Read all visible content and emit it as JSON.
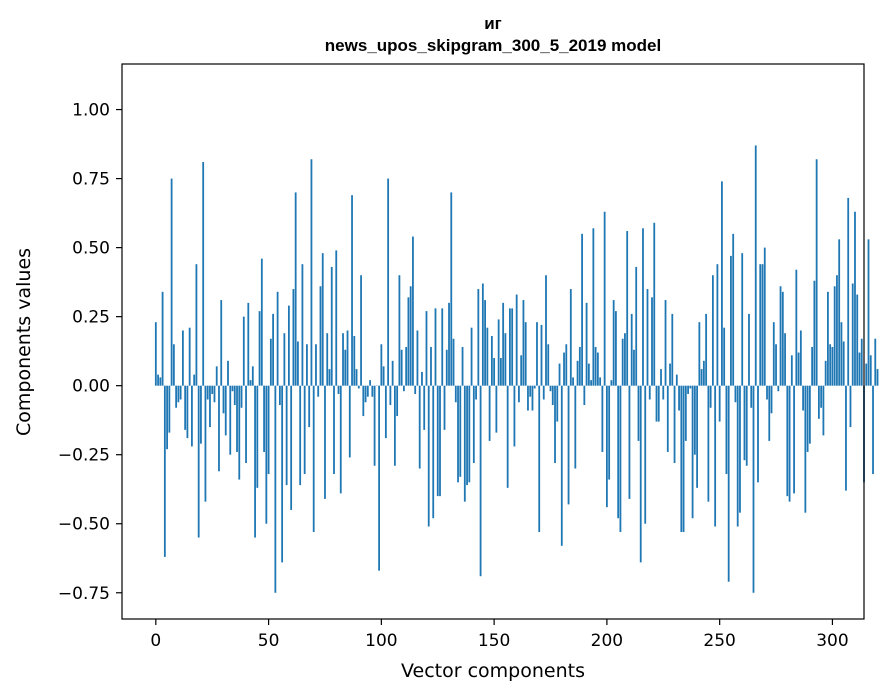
{
  "chart_data": {
    "type": "bar",
    "title_line1": "иг",
    "title_line2": "news_upos_skipgram_300_5_2019 model",
    "xlabel": "Vector components",
    "ylabel": "Components values",
    "xlim": [
      -15,
      314
    ],
    "ylim": [
      -0.845,
      1.165
    ],
    "xticks": [
      0,
      50,
      100,
      150,
      200,
      250,
      300
    ],
    "xtick_labels": [
      "0",
      "50",
      "100",
      "150",
      "200",
      "250",
      "300"
    ],
    "yticks": [
      -0.75,
      -0.5,
      -0.25,
      0.0,
      0.25,
      0.5,
      0.75,
      1.0
    ],
    "ytick_labels": [
      "−0.75",
      "−0.50",
      "−0.25",
      "0.00",
      "0.25",
      "0.50",
      "0.75",
      "1.00"
    ],
    "bar_color": "#1f77b4",
    "grid": false,
    "values": [
      0.23,
      0.04,
      0.03,
      0.34,
      -0.62,
      -0.23,
      -0.17,
      0.75,
      0.15,
      -0.08,
      -0.06,
      -0.05,
      0.2,
      -0.16,
      -0.19,
      0.21,
      -0.22,
      0.04,
      0.44,
      -0.55,
      -0.21,
      0.81,
      -0.42,
      -0.05,
      -0.15,
      -0.03,
      -0.06,
      0.07,
      -0.31,
      0.31,
      -0.1,
      -0.18,
      0.09,
      -0.25,
      -0.02,
      -0.07,
      -0.24,
      -0.34,
      -0.08,
      0.25,
      -0.28,
      0.3,
      0.02,
      0.07,
      -0.55,
      -0.37,
      0.27,
      0.46,
      -0.24,
      -0.5,
      -0.32,
      0.17,
      0.26,
      -0.75,
      0.34,
      -0.07,
      -0.64,
      0.19,
      -0.36,
      0.29,
      -0.45,
      0.35,
      0.7,
      0.16,
      -0.36,
      0.44,
      -0.32,
      0.15,
      -0.15,
      0.82,
      -0.53,
      0.15,
      -0.04,
      0.36,
      0.48,
      -0.41,
      0.19,
      0.06,
      0.43,
      -0.32,
      0.49,
      -0.03,
      -0.39,
      0.19,
      0.13,
      0.2,
      -0.26,
      0.69,
      0.18,
      0.06,
      -0.01,
      0.4,
      -0.11,
      -0.06,
      -0.04,
      0.02,
      -0.04,
      -0.29,
      0.0,
      -0.67,
      0.15,
      0.07,
      -0.19,
      0.75,
      -0.07,
      0.09,
      -0.29,
      -0.11,
      0.4,
      0.13,
      -0.02,
      0.14,
      0.32,
      0.36,
      0.54,
      -0.03,
      0.2,
      -0.3,
      0.05,
      -0.16,
      0.27,
      -0.51,
      0.14,
      -0.48,
      0.28,
      -0.4,
      -0.4,
      0.28,
      -0.16,
      0.13,
      0.3,
      0.7,
      0.17,
      -0.06,
      -0.35,
      -0.33,
      0.14,
      -0.42,
      -0.36,
      -0.35,
      0.21,
      -0.28,
      -0.05,
      0.35,
      -0.69,
      0.37,
      0.31,
      0.21,
      -0.2,
      0.18,
      0.1,
      -0.17,
      0.24,
      0.1,
      0.3,
      0.19,
      -0.37,
      0.28,
      0.28,
      -0.22,
      0.33,
      -0.06,
      0.11,
      0.31,
      0.23,
      -0.09,
      -0.04,
      -0.09,
      -0.01,
      0.23,
      -0.53,
      0.22,
      -0.05,
      0.4,
      0.15,
      -0.02,
      -0.07,
      -0.28,
      -0.13,
      0.08,
      -0.58,
      0.12,
      0.15,
      -0.43,
      0.35,
      0.03,
      -0.3,
      0.09,
      0.14,
      0.55,
      -0.07,
      0.3,
      0.08,
      0.02,
      0.57,
      0.14,
      0.12,
      0.03,
      -0.24,
      0.63,
      -0.44,
      -0.34,
      0.02,
      0.31,
      0.27,
      -0.48,
      -0.53,
      0.17,
      0.19,
      0.56,
      -0.41,
      0.26,
      0.13,
      0.43,
      -0.2,
      -0.64,
      0.57,
      -0.5,
      0.35,
      -0.05,
      0.32,
      0.59,
      -0.13,
      -0.13,
      0.06,
      -0.05,
      0.31,
      -0.24,
      0.08,
      0.26,
      -0.28,
      0.04,
      -0.09,
      -0.53,
      -0.53,
      -0.2,
      -0.03,
      -0.01,
      -0.48,
      -0.25,
      -0.37,
      0.23,
      0.06,
      0.09,
      0.26,
      -0.42,
      -0.08,
      0.4,
      -0.51,
      0.44,
      -0.13,
      0.74,
      0.21,
      -0.32,
      -0.71,
      0.47,
      0.55,
      -0.06,
      -0.51,
      -0.46,
      0.48,
      -0.27,
      -0.29,
      0.26,
      -0.08,
      -0.75,
      0.87,
      -0.35,
      0.44,
      0.44,
      0.5,
      -0.05,
      -0.2,
      -0.1,
      0.23,
      0.15,
      -0.02,
      0.36,
      0.34,
      0.19,
      -0.4,
      -0.42,
      0.11,
      -0.39,
      0.42,
      0.12,
      0.2,
      -0.09,
      -0.46,
      -0.24,
      -0.21,
      0.14,
      0.38,
      0.82,
      -0.12,
      -0.08,
      -0.18,
      0.09,
      0.34,
      0.15,
      0.14,
      0.36,
      0.4,
      0.53,
      0.23,
      0.16,
      -0.38,
      0.68,
      -0.15,
      0.37,
      0.63,
      0.33,
      0.12,
      0.17,
      -0.35,
      0.08,
      0.53,
      0.11,
      -0.32,
      0.17,
      0.06
    ]
  }
}
